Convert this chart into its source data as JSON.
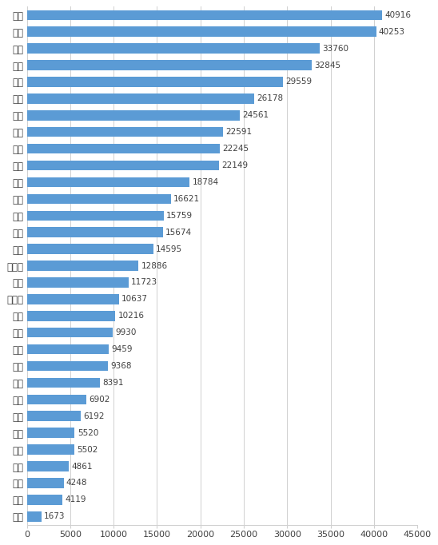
{
  "categories": [
    "西藏",
    "海南",
    "青海",
    "广西",
    "天津",
    "甘肃",
    "陕西",
    "新疆",
    "山西",
    "河北",
    "辽宁",
    "吉林",
    "江西",
    "黑龙江",
    "贵州",
    "内蒙古",
    "湖北",
    "湖南",
    "云南",
    "河南",
    "福建",
    "广东",
    "北京",
    "山东",
    "安徽",
    "上海",
    "重庆",
    "宁夏",
    "浙江",
    "江苏",
    "四川"
  ],
  "values": [
    1673,
    4119,
    4248,
    4861,
    5502,
    5520,
    6192,
    6902,
    8391,
    9368,
    9459,
    9930,
    10216,
    10637,
    11723,
    12886,
    14595,
    15674,
    15759,
    16621,
    18784,
    22149,
    22245,
    22591,
    24561,
    26178,
    29559,
    32845,
    33760,
    40253,
    40916
  ],
  "bar_color": "#5B9BD5",
  "xlim": [
    0,
    45000
  ],
  "xticks": [
    0,
    5000,
    10000,
    15000,
    20000,
    25000,
    30000,
    35000,
    40000,
    45000
  ],
  "xtick_labels": [
    "0",
    "5000",
    "10000",
    "15000",
    "20000",
    "25000",
    "30000",
    "35000",
    "40000",
    "45000"
  ],
  "value_label_fontsize": 7.5,
  "category_fontsize": 8.5,
  "tick_fontsize": 8.0,
  "bar_height": 0.6,
  "background_color": "#ffffff",
  "grid_color": "#d0d0d0",
  "text_color": "#404040"
}
